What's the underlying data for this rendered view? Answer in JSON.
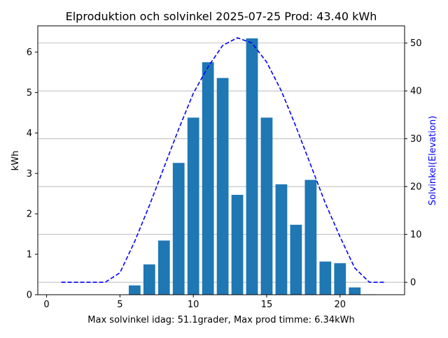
{
  "chart_data": {
    "type": "bar",
    "title": "Elproduktion och solvinkel 2025-07-25 Prod: 43.40 kWh",
    "xlabel": "Max solvinkel idag: 51.1grader, Max prod timme: 6.34kWh",
    "ylabel": "kWh",
    "y2label": "Solvinkel(Elevation)",
    "xlim": [
      -0.6,
      24.4
    ],
    "ylim": [
      0,
      6.65
    ],
    "y2lim": [
      -2.6,
      53.6
    ],
    "xticks": [
      0,
      5,
      10,
      15,
      20
    ],
    "yticks": [
      0,
      1,
      2,
      3,
      4,
      5,
      6
    ],
    "y2ticks": [
      0,
      10,
      20,
      30,
      40,
      50
    ],
    "y2_grid": true,
    "colors": {
      "bars": "#1f77b4",
      "elevation_line": "#0000ff",
      "grid": "#b0b0b0",
      "axis": "#000000"
    },
    "series": [
      {
        "type": "bar",
        "axis": "left",
        "x": [
          0,
          1,
          2,
          3,
          4,
          5,
          6,
          7,
          8,
          9,
          10,
          11,
          12,
          13,
          14,
          15,
          16,
          17,
          18,
          19,
          20,
          21,
          22,
          23
        ],
        "values": [
          0,
          0,
          0,
          0,
          0,
          0,
          0.23,
          0.75,
          1.34,
          3.26,
          4.38,
          5.75,
          5.36,
          2.47,
          6.34,
          4.38,
          2.73,
          1.73,
          2.84,
          0.82,
          0.78,
          0.18,
          0.01,
          0
        ]
      },
      {
        "type": "line",
        "style": "dashed",
        "axis": "right",
        "x": [
          1,
          2,
          3,
          4,
          5,
          6,
          7,
          8,
          9,
          10,
          11,
          12,
          13,
          14,
          15,
          16,
          17,
          18,
          19,
          20,
          21,
          22,
          23
        ],
        "values": [
          0,
          0,
          0,
          0,
          2,
          8.5,
          16,
          24,
          32,
          39.5,
          45,
          49.5,
          51.1,
          50,
          46,
          40,
          32.5,
          24.5,
          16.5,
          9.5,
          3,
          0,
          0
        ]
      }
    ]
  }
}
